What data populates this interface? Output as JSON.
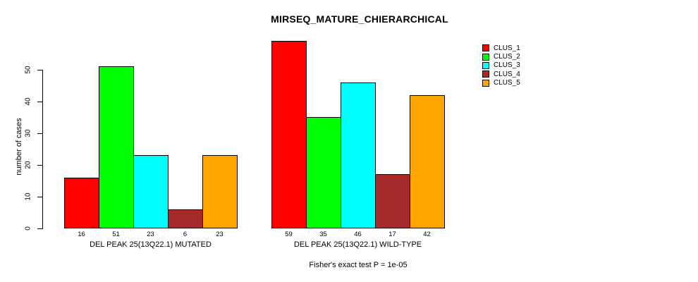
{
  "title": "MIRSEQ_MATURE_CHIERARCHICAL",
  "y_axis": {
    "label": "number of cases",
    "ticks": [
      0,
      10,
      20,
      30,
      40,
      50
    ]
  },
  "footer": "Fisher's exact test P = 1e-05",
  "legend": {
    "items": [
      {
        "label": "CLUS_1",
        "color": "#FF0000"
      },
      {
        "label": "CLUS_2",
        "color": "#00FF00"
      },
      {
        "label": "CLUS_3",
        "color": "#00FFFF"
      },
      {
        "label": "CLUS_4",
        "color": "#A52A2A"
      },
      {
        "label": "CLUS_5",
        "color": "#FFA500"
      }
    ]
  },
  "chart_data": {
    "type": "bar",
    "title": "MIRSEQ_MATURE_CHIERARCHICAL",
    "ylabel": "number of cases",
    "xlabel": "",
    "ylim": [
      0,
      59
    ],
    "yticks": [
      0,
      10,
      20,
      30,
      40,
      50
    ],
    "grid": false,
    "legend_position": "top-right",
    "bar_value_labels_shown": true,
    "categories": [
      "DEL PEAK 25(13Q22.1) MUTATED",
      "DEL PEAK 25(13Q22.1) WILD-TYPE"
    ],
    "series": [
      {
        "name": "CLUS_1",
        "color": "#FF0000",
        "values": [
          16,
          59
        ]
      },
      {
        "name": "CLUS_2",
        "color": "#00FF00",
        "values": [
          51,
          35
        ]
      },
      {
        "name": "CLUS_3",
        "color": "#00FFFF",
        "values": [
          23,
          46
        ]
      },
      {
        "name": "CLUS_4",
        "color": "#A52A2A",
        "values": [
          6,
          17
        ]
      },
      {
        "name": "CLUS_5",
        "color": "#FFA500",
        "values": [
          23,
          42
        ]
      }
    ],
    "annotation": "Fisher's exact test P = 1e-05"
  }
}
